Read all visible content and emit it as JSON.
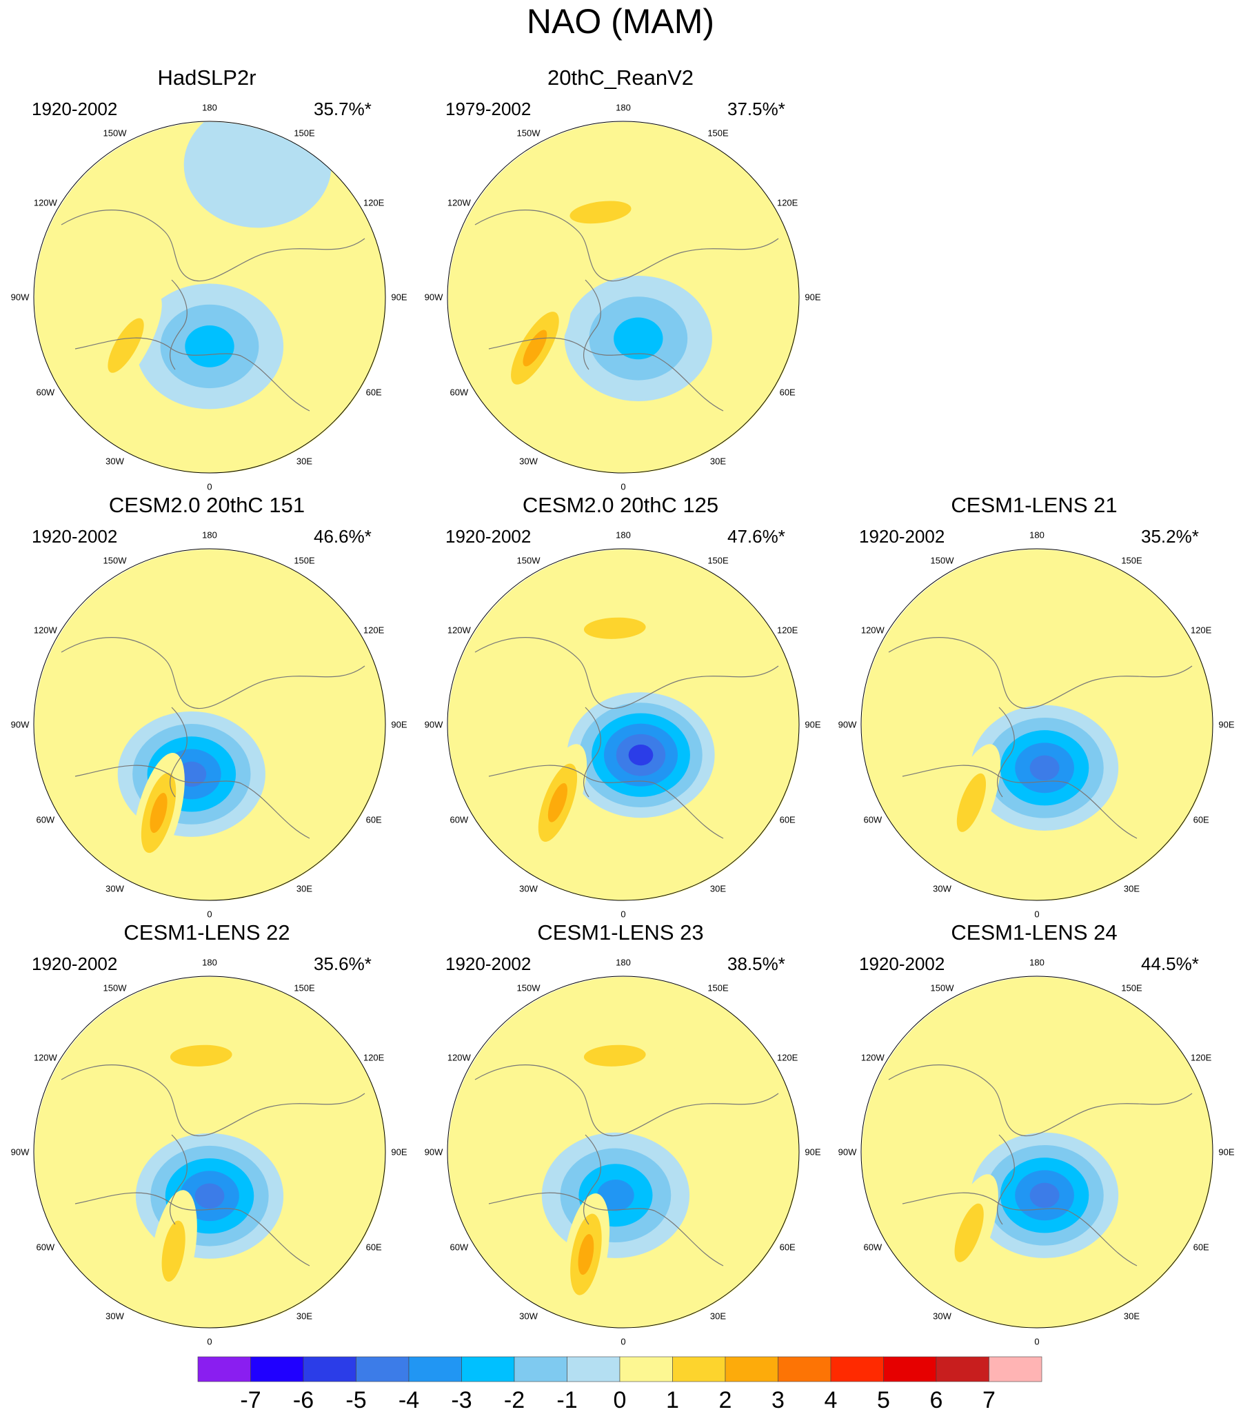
{
  "title": "NAO (MAM)",
  "longitude_labels": [
    "180",
    "150E",
    "120E",
    "90E",
    "60E",
    "30E",
    "0",
    "30W",
    "60W",
    "90W",
    "120W",
    "150W"
  ],
  "panels": [
    {
      "title": "HadSLP2r",
      "period": "1920-2002",
      "pct": "35.7%*",
      "features": [
        {
          "lon": 0,
          "r": 0.28,
          "v": -3
        },
        {
          "lon": 300,
          "r": 0.55,
          "v": 2
        },
        {
          "lon": 160,
          "r": 0.8,
          "v": -1
        }
      ]
    },
    {
      "title": "20thC_ReanV2",
      "period": "1979-2002",
      "pct": "37.5%*",
      "features": [
        {
          "lon": 20,
          "r": 0.25,
          "v": -3
        },
        {
          "lon": 195,
          "r": 0.5,
          "v": 2
        },
        {
          "lon": 300,
          "r": 0.58,
          "v": 3
        }
      ]
    },
    {
      "title": "CESM2.0 20thC 151",
      "period": "1920-2002",
      "pct": "46.6%*",
      "features": [
        {
          "lon": 340,
          "r": 0.3,
          "v": -5
        },
        {
          "lon": 330,
          "r": 0.58,
          "v": 3
        }
      ]
    },
    {
      "title": "CESM2.0 20thC 125",
      "period": "1920-2002",
      "pct": "47.6%*",
      "features": [
        {
          "lon": 30,
          "r": 0.2,
          "v": -6
        },
        {
          "lon": 320,
          "r": 0.58,
          "v": 3
        },
        {
          "lon": 185,
          "r": 0.55,
          "v": 2
        }
      ]
    },
    {
      "title": "CESM1-LENS 21",
      "period": "1920-2002",
      "pct": "35.2%*",
      "features": [
        {
          "lon": 10,
          "r": 0.25,
          "v": -5
        },
        {
          "lon": 320,
          "r": 0.58,
          "v": 2
        }
      ]
    },
    {
      "title": "CESM1-LENS 22",
      "period": "1920-2002",
      "pct": "35.6%*",
      "features": [
        {
          "lon": 0,
          "r": 0.25,
          "v": -5
        },
        {
          "lon": 340,
          "r": 0.6,
          "v": 2
        },
        {
          "lon": 185,
          "r": 0.55,
          "v": 2
        }
      ]
    },
    {
      "title": "CESM1-LENS 23",
      "period": "1920-2002",
      "pct": "38.5%*",
      "features": [
        {
          "lon": 350,
          "r": 0.25,
          "v": -4
        },
        {
          "lon": 340,
          "r": 0.62,
          "v": 3
        },
        {
          "lon": 185,
          "r": 0.55,
          "v": 2
        }
      ]
    },
    {
      "title": "CESM1-LENS 24",
      "period": "1920-2002",
      "pct": "44.5%*",
      "features": [
        {
          "lon": 10,
          "r": 0.25,
          "v": -5
        },
        {
          "lon": 320,
          "r": 0.6,
          "v": 2
        }
      ]
    }
  ],
  "colorbar": {
    "labels": [
      "-7",
      "-6",
      "-5",
      "-4",
      "-3",
      "-2",
      "-1",
      "0",
      "1",
      "2",
      "3",
      "4",
      "5",
      "6",
      "7"
    ],
    "colors": [
      "#8a1ef0",
      "#2000ff",
      "#2b3de8",
      "#3c7ce8",
      "#2196f3",
      "#00c0ff",
      "#7fcaf0",
      "#b4dff2",
      "#fdf792",
      "#fdd42d",
      "#fdab0b",
      "#fd7405",
      "#ff2a00",
      "#e60000",
      "#c81e1e",
      "#ffb4b4"
    ]
  }
}
